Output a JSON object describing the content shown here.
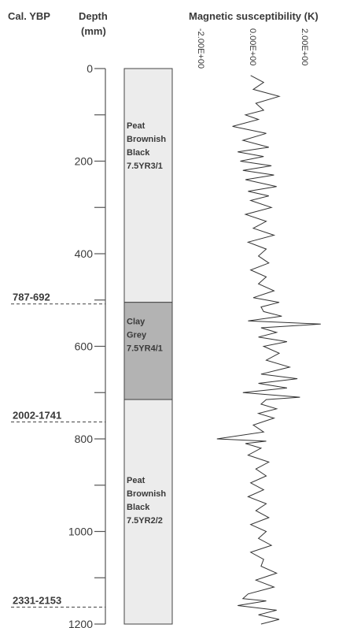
{
  "chart_data": {
    "type": "line",
    "headers": {
      "age": "Cal. YBP",
      "depth_line1": "Depth",
      "depth_line2": "(mm)",
      "mag": "Magnetic susceptibility (K)"
    },
    "depth_axis": {
      "ylim": [
        0,
        1200
      ],
      "ticks": [
        0,
        200,
        400,
        600,
        800,
        1000,
        1200
      ],
      "minor_ticks": [
        100,
        300,
        500,
        700,
        900,
        1100
      ]
    },
    "mag_axis": {
      "xlim": [
        -2.0,
        2.6
      ],
      "tick_values": [
        -2.0,
        0.0,
        2.0
      ],
      "tick_labels": [
        "-2.00E+00",
        "0.00E+00",
        "2.00E+00"
      ]
    },
    "age_markers": [
      {
        "label": "787-692",
        "depth": 505
      },
      {
        "label": "2002-1741",
        "depth": 760
      },
      {
        "label": "2331-2153",
        "depth": 1160
      }
    ],
    "units": [
      {
        "top": 0,
        "bottom": 505,
        "lines": [
          "Peat",
          "Brownish",
          "Black",
          "7.5YR3/1"
        ],
        "color": "#ececec"
      },
      {
        "top": 505,
        "bottom": 715,
        "lines": [
          "Clay",
          "Grey",
          "7.5YR4/1"
        ],
        "color": "#b3b3b3"
      },
      {
        "top": 715,
        "bottom": 1200,
        "lines": [
          "Peat",
          "Brownish",
          "Black",
          "7.5YR2/2"
        ],
        "color": "#ececec"
      }
    ],
    "series": [
      {
        "depth": [
          15,
          30,
          45,
          60,
          75,
          90,
          100,
          110,
          125,
          140,
          155,
          170,
          180,
          190,
          200,
          210,
          220,
          230,
          240,
          255,
          265,
          275,
          285,
          300,
          315,
          330,
          345,
          360,
          375,
          390,
          405,
          420,
          435,
          450,
          465,
          480,
          495,
          505,
          515,
          525,
          535,
          545,
          552,
          560,
          570,
          580,
          590,
          600,
          615,
          630,
          645,
          660,
          670,
          680,
          690,
          700,
          710,
          715,
          725,
          735,
          745,
          755,
          770,
          785,
          800,
          805,
          810,
          820,
          835,
          850,
          865,
          880,
          895,
          910,
          925,
          940,
          955,
          970,
          985,
          1000,
          1015,
          1030,
          1045,
          1060,
          1075,
          1090,
          1105,
          1120,
          1135,
          1145,
          1150,
          1160,
          1170,
          1180,
          1190,
          1200
        ],
        "values": [
          -0.1,
          0.4,
          0.0,
          1.0,
          0.1,
          0.4,
          -0.3,
          0.2,
          -0.8,
          0.5,
          -0.4,
          0.6,
          -0.6,
          0.4,
          -0.5,
          0.7,
          -0.4,
          0.8,
          -0.3,
          0.9,
          -0.2,
          0.6,
          -0.1,
          0.7,
          -0.3,
          0.5,
          0.0,
          0.8,
          -0.2,
          0.5,
          0.2,
          0.6,
          -0.1,
          0.5,
          0.2,
          0.8,
          0.0,
          1.0,
          0.3,
          0.4,
          1.1,
          -0.2,
          2.6,
          0.3,
          0.9,
          0.2,
          1.3,
          0.4,
          1.0,
          0.5,
          1.4,
          0.3,
          1.7,
          0.2,
          1.3,
          -0.4,
          1.8,
          0.5,
          0.3,
          0.9,
          0.2,
          0.8,
          0.0,
          0.4,
          -1.4,
          0.5,
          -0.3,
          0.3,
          -0.2,
          0.6,
          0.1,
          0.5,
          -0.1,
          0.4,
          -0.2,
          0.5,
          0.1,
          0.6,
          -0.1,
          0.5,
          0.2,
          0.7,
          -0.1,
          0.4,
          0.3,
          0.9,
          0.1,
          0.8,
          -0.2,
          -0.4,
          0.5,
          -0.6,
          0.9,
          0.2,
          1.0,
          0.3
        ]
      }
    ]
  }
}
